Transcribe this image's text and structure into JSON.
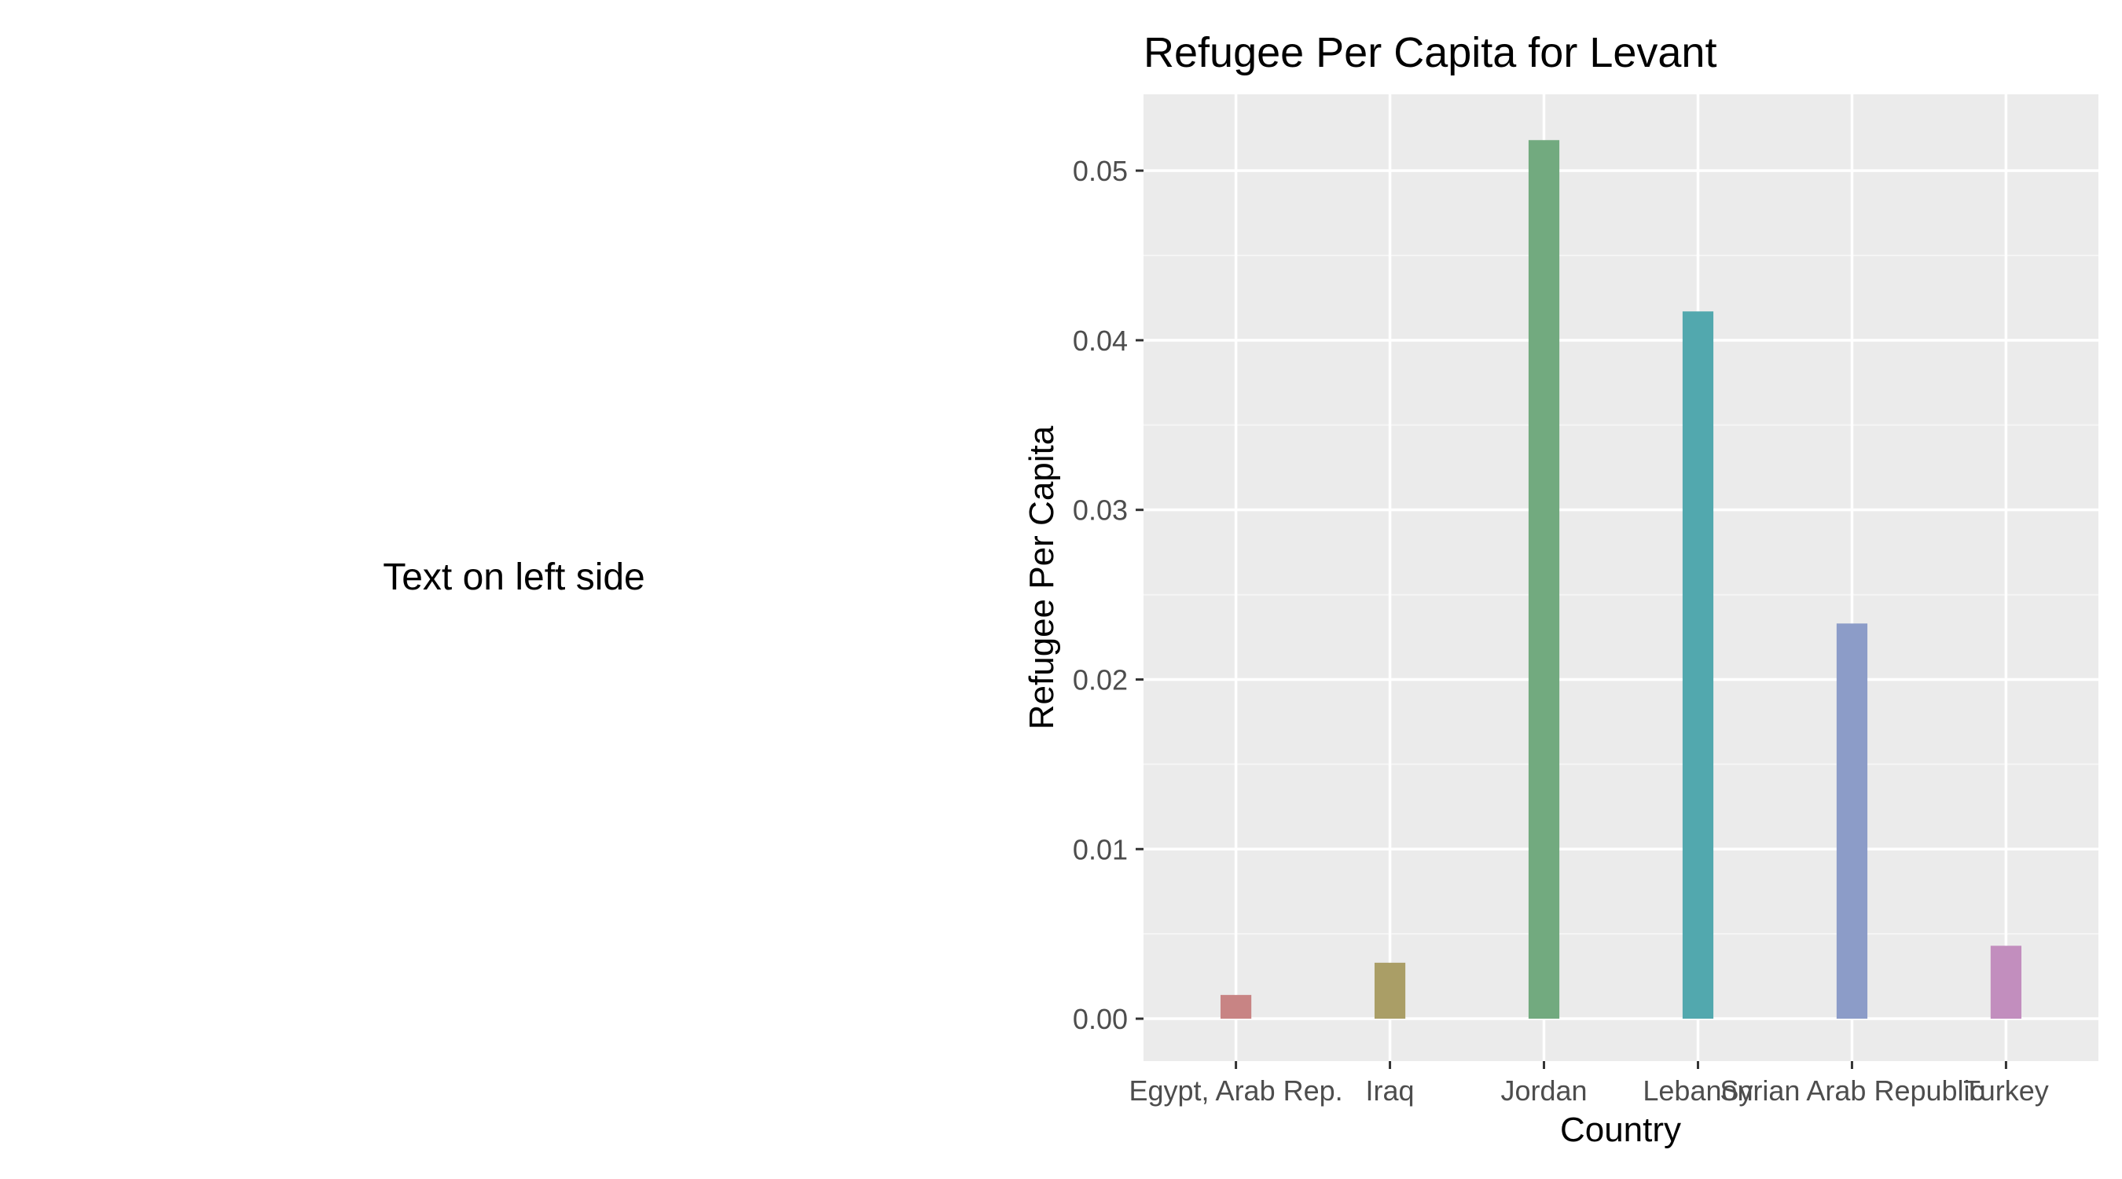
{
  "left_panel": {
    "text": "Text on left side"
  },
  "colors": {
    "panel_background": "#ebebeb",
    "grid_major": "#ffffff",
    "grid_minor": "#f5f5f5",
    "tick": "#333333",
    "tick_text": "#4d4d4d"
  },
  "chart_data": {
    "type": "bar",
    "title": "Refugee Per Capita for Levant",
    "xlabel": "Country",
    "ylabel": "Refugee Per Capita",
    "categories": [
      "Egypt, Arab Rep.",
      "Iraq",
      "Jordan",
      "Lebanon",
      "Syrian Arab Republic",
      "Turkey"
    ],
    "values": [
      0.0014,
      0.0033,
      0.0518,
      0.0417,
      0.0233,
      0.0043
    ],
    "bar_colors": [
      "#c88484",
      "#aa9e66",
      "#72aa7f",
      "#52a8ae",
      "#8c9cc8",
      "#c28ebe"
    ],
    "ylim": [
      -0.0025,
      0.0545
    ],
    "yticks": [
      0.0,
      0.01,
      0.02,
      0.03,
      0.04,
      0.05
    ],
    "ytick_labels": [
      "0.00",
      "0.01",
      "0.02",
      "0.03",
      "0.04",
      "0.05"
    ],
    "grid": true,
    "legend": "none"
  }
}
